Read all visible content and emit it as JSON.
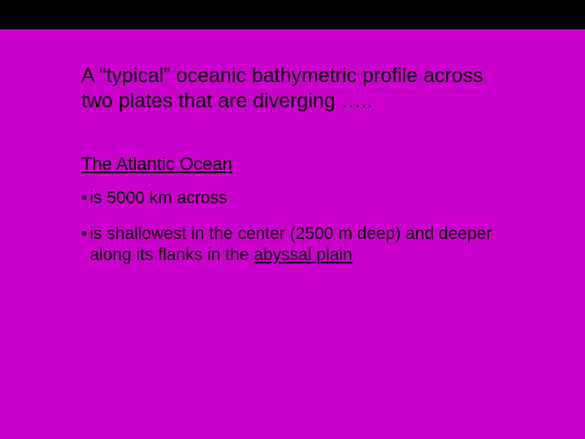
{
  "slide": {
    "background_color": "#cc00cc",
    "top_band_color": "#000000",
    "text_color": "#000000",
    "font_family": "Trebuchet MS",
    "title": "A “typical” oceanic bathymetric profile across two plates that are diverging …..",
    "title_fontsize": 25,
    "subheading": "The Atlantic Ocean",
    "subheading_fontsize": 22,
    "subheading_underline": true,
    "bullets": [
      {
        "marker": "•",
        "text_plain": "is 5000 km across",
        "fontsize": 21
      },
      {
        "marker": "•",
        "text_prefix": "is shallowest in the center (2500 m deep) and deeper along its flanks in the ",
        "text_underlined": "abyssal plain",
        "fontsize": 21
      }
    ]
  }
}
